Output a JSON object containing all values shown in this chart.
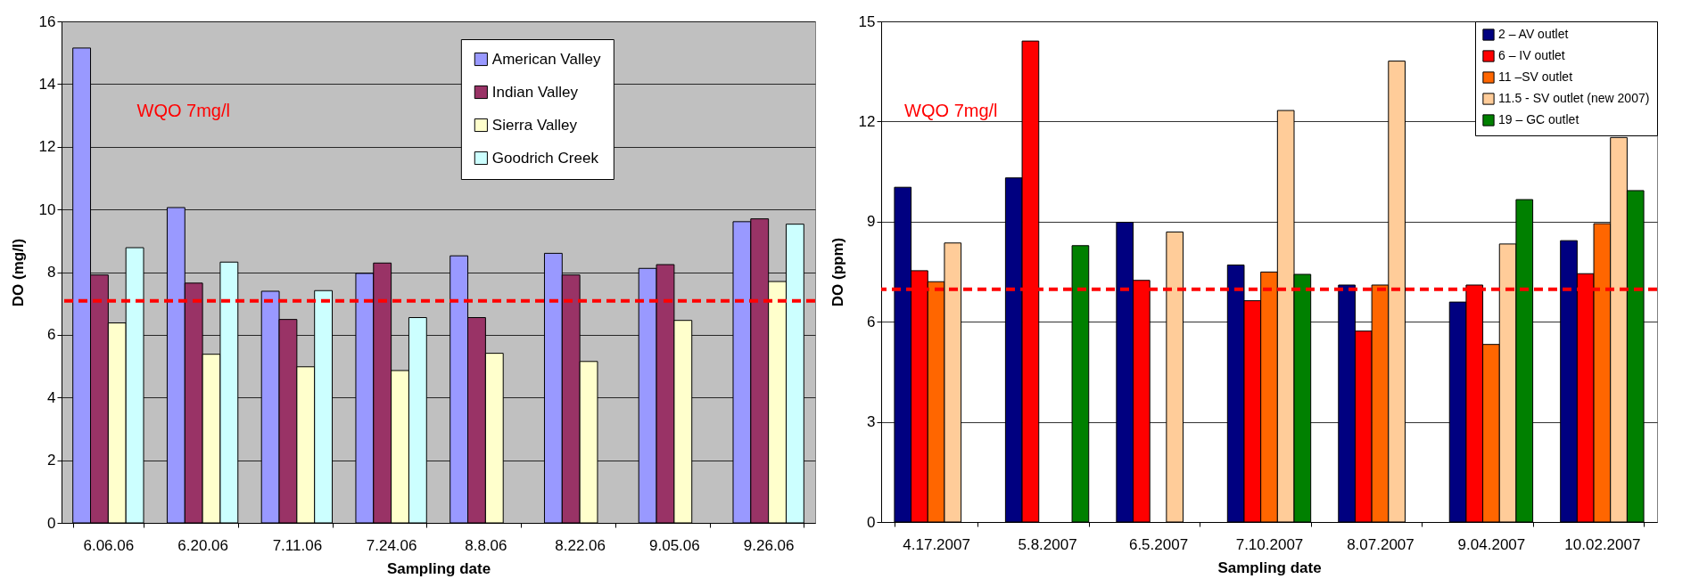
{
  "chart_data": [
    {
      "type": "bar",
      "xlabel": "Sampling date",
      "ylabel": "DO (mg/l)",
      "categories": [
        "6.06.06",
        "6.20.06",
        "7.11.06",
        "7.24.06",
        "8.8.06",
        "8.22.06",
        "9.05.06",
        "9.26.06"
      ],
      "series": [
        {
          "name": "American Valley",
          "color": "#9999ff",
          "values": [
            15.15,
            10.06,
            7.39,
            7.96,
            8.52,
            8.6,
            8.12,
            9.61
          ]
        },
        {
          "name": "Indian Valley",
          "color": "#993366",
          "values": [
            7.91,
            7.65,
            6.49,
            8.29,
            6.55,
            7.91,
            8.24,
            9.7
          ]
        },
        {
          "name": "Sierra Valley",
          "color": "#ffffcc",
          "values": [
            6.38,
            5.38,
            4.98,
            4.86,
            5.41,
            5.15,
            6.46,
            7.7
          ]
        },
        {
          "name": "Goodrich Creek",
          "color": "#ccffff",
          "values": [
            8.78,
            8.32,
            7.41,
            6.55,
            null,
            null,
            null,
            9.53
          ]
        }
      ],
      "ylim": [
        0,
        16
      ],
      "yticks": [
        0,
        2,
        4,
        6,
        8,
        10,
        12,
        14,
        16
      ],
      "grid": "y",
      "legend": "top",
      "ref_lines": [
        {
          "axis": "y",
          "value": 7.08,
          "label": "WQO 7mg/l",
          "color": "#ff0000",
          "line_style": "dashed"
        }
      ]
    },
    {
      "type": "bar",
      "xlabel": "Sampling date",
      "ylabel": "DO (ppm)",
      "categories": [
        "4.17.2007",
        "5.8.2007",
        "6.5.2007",
        "7.10.2007",
        "8.07.2007",
        "9.04.2007",
        "10.02.2007"
      ],
      "series": [
        {
          "name": "2 – AV outlet",
          "color": "#000080",
          "values": [
            10.03,
            10.31,
            8.98,
            7.7,
            7.1,
            6.59,
            8.43
          ]
        },
        {
          "name": "6 – IV outlet",
          "color": "#ff0000",
          "values": [
            7.53,
            14.41,
            7.24,
            6.63,
            5.72,
            7.1,
            7.44
          ]
        },
        {
          "name": "11 –SV outlet",
          "color": "#ff6600",
          "values": [
            7.2,
            null,
            null,
            7.49,
            7.1,
            5.32,
            8.94
          ]
        },
        {
          "name": "11.5 - SV outlet (new 2007)",
          "color": "#ffcc99",
          "values": [
            8.36,
            null,
            8.69,
            12.33,
            13.81,
            8.33,
            11.52
          ]
        },
        {
          "name": "19 – GC outlet",
          "color": "#008000",
          "values": [
            null,
            8.28,
            null,
            7.42,
            null,
            9.66,
            9.93
          ]
        }
      ],
      "ylim": [
        0,
        15
      ],
      "yticks": [
        0,
        3,
        6,
        9,
        12,
        15
      ],
      "grid": "y",
      "legend": "top right",
      "ref_lines": [
        {
          "axis": "y",
          "value": 6.97,
          "label": "WQO 7mg/l",
          "color": "#ff0000",
          "line_style": "dashed"
        }
      ]
    }
  ]
}
